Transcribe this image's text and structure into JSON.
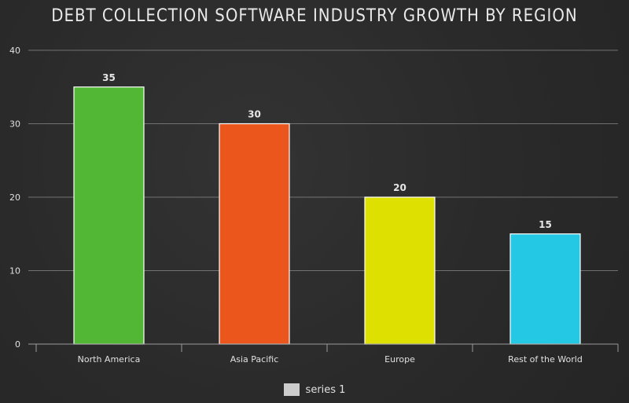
{
  "chart_data": {
    "type": "bar",
    "title": "DEBT COLLECTION SOFTWARE INDUSTRY GROWTH BY REGION",
    "categories": [
      "North America",
      "Asia Pacific",
      "Europe",
      "Rest of the World"
    ],
    "series": [
      {
        "name": "series 1",
        "values": [
          35,
          30,
          20,
          15
        ],
        "colors": [
          "#52b734",
          "#ea561c",
          "#dde000",
          "#25c8e4"
        ]
      }
    ],
    "xlabel": "",
    "ylabel": "",
    "ylim": [
      0,
      40
    ],
    "yticks": [
      "0",
      "10",
      "20",
      "30",
      "40"
    ],
    "data_labels": [
      "35",
      "30",
      "20",
      "15"
    ],
    "grid": true,
    "legend_position": "bottom-center",
    "legend_color": "#cccccc"
  }
}
